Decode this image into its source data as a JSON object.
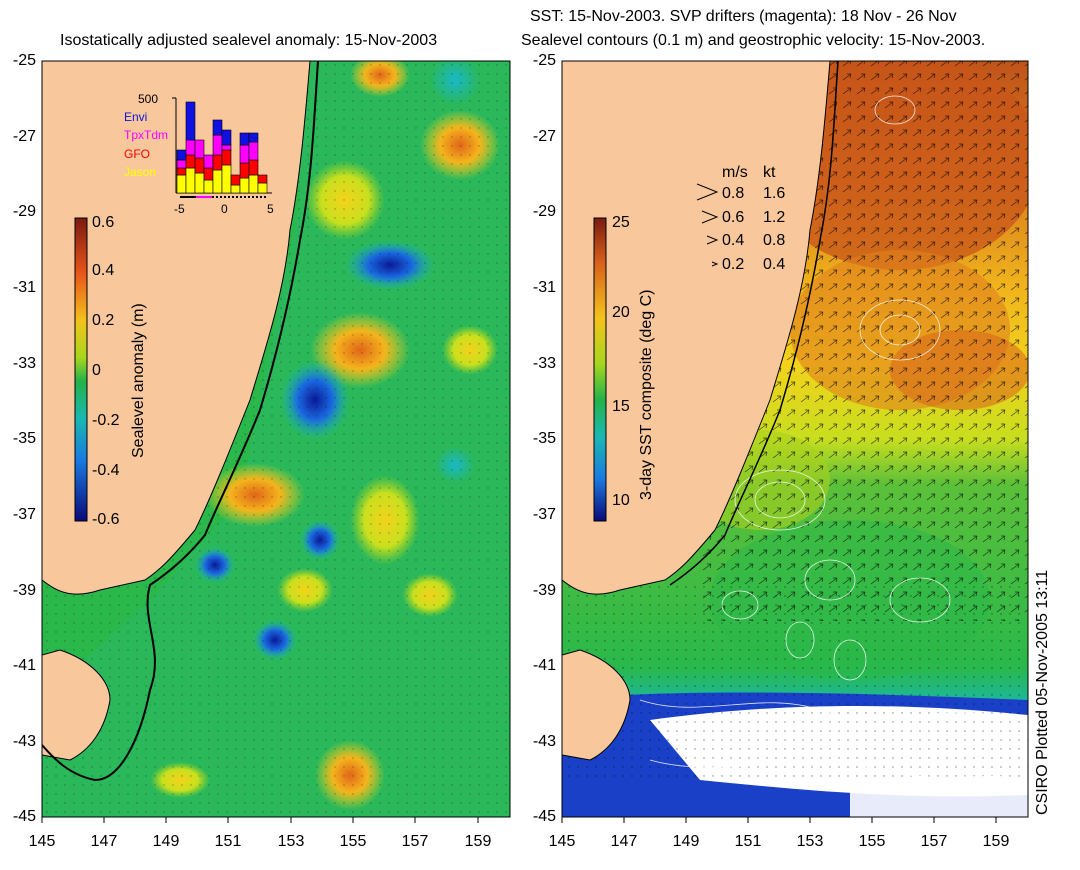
{
  "left_panel": {
    "title": "Isostatically adjusted sealevel anomaly: 15-Nov-2003",
    "colorbar": {
      "label": "Sealevel anomaly (m)",
      "ticks": [
        "0.6",
        "0.4",
        "0.2",
        "0",
        "-0.2",
        "-0.4",
        "-0.6"
      ]
    },
    "inset": {
      "ymax_label": "500",
      "legend": [
        {
          "name": "Envi",
          "color": "#1010e0"
        },
        {
          "name": "TpxTdm",
          "color": "#ff00ff"
        },
        {
          "name": "GFO",
          "color": "#ff0000"
        },
        {
          "name": "Jason",
          "color": "#ffff00"
        }
      ],
      "xticks": [
        "-5",
        "0",
        "5"
      ]
    }
  },
  "right_panel": {
    "title_line1": "SST: 15-Nov-2003. SVP drifters (magenta): 18 Nov - 26 Nov",
    "title_line2": "Sealevel contours (0.1 m) and geostrophic velocity: 15-Nov-2003.",
    "colorbar": {
      "label": "3-day SST composite (deg C)",
      "ticks": [
        "25",
        "20",
        "15",
        "10"
      ]
    },
    "velocity_legend": {
      "header_ms": "m/s",
      "header_kt": "kt",
      "rows": [
        {
          "ms": "0.8",
          "kt": "1.6"
        },
        {
          "ms": "0.6",
          "kt": "1.2"
        },
        {
          "ms": "0.4",
          "kt": "0.8"
        },
        {
          "ms": "0.2",
          "kt": "0.4"
        }
      ]
    }
  },
  "axes": {
    "y_ticks": [
      "-25",
      "-27",
      "-29",
      "-31",
      "-33",
      "-35",
      "-37",
      "-39",
      "-41",
      "-43",
      "-45"
    ],
    "x_ticks": [
      "145",
      "147",
      "149",
      "151",
      "153",
      "155",
      "157",
      "159"
    ]
  },
  "credit": "CSIRO Plotted 05-Nov-2005 13:11",
  "colors": {
    "land": "#f8c89c",
    "ocean_green": "#2ab84a",
    "warm_orange": "#e88a1e",
    "cold_blue": "#1a40c8"
  }
}
